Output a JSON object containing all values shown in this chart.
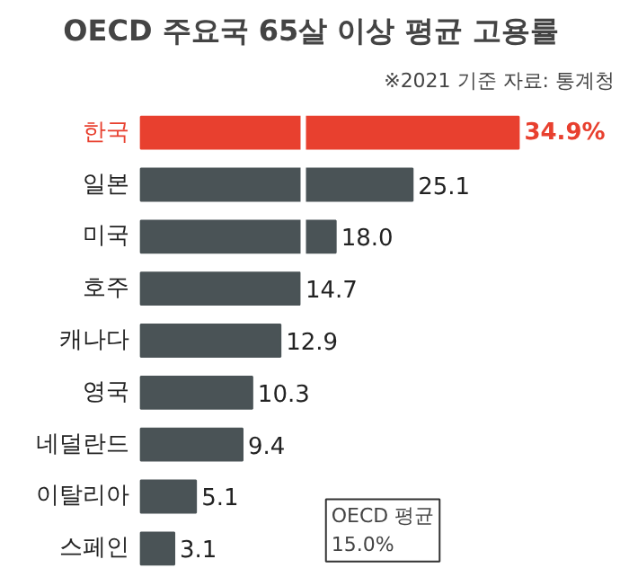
{
  "chart_data": {
    "type": "bar",
    "orientation": "horizontal",
    "title": "OECD 주요국 65살 이상 평균 고용률",
    "subtitle": "※2021 기준  자료: 통계청",
    "categories": [
      "한국",
      "일본",
      "미국",
      "호주",
      "캐나다",
      "영국",
      "네덜란드",
      "이탈리아",
      "스페인"
    ],
    "values": [
      34.9,
      25.1,
      18.0,
      14.7,
      12.9,
      10.3,
      9.4,
      5.1,
      3.1
    ],
    "colors": [
      "#e8402f",
      "#4a5356",
      "#4a5356",
      "#4a5356",
      "#4a5356",
      "#4a5356",
      "#4a5356",
      "#4a5356",
      "#4a5356"
    ],
    "value_labels": [
      "34.9%",
      "25.1",
      "18.0",
      "14.7",
      "12.9",
      "10.3",
      "9.4",
      "5.1",
      "3.1"
    ],
    "ref_lines": [
      {
        "axis": "x",
        "value": 15.0,
        "label": "OECD 평균\n15.0%",
        "color": "#ffffff"
      }
    ],
    "grid": false
  }
}
